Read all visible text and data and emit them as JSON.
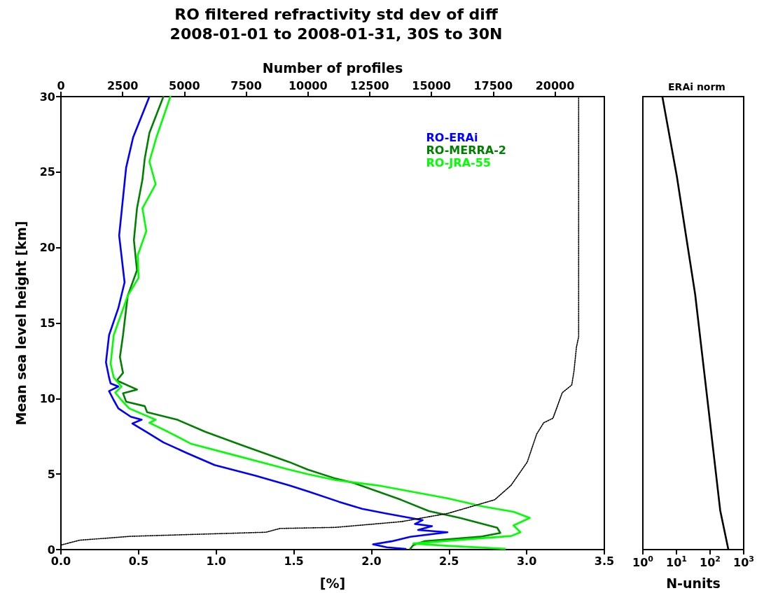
{
  "chart_data": [
    {
      "type": "line",
      "title": "RO filtered refractivity std dev of diff",
      "subtitle": "2008-01-01 to 2008-01-31, 30S to 30N",
      "xlabel": "[%]",
      "ylabel": "Mean sea level height [km]",
      "x2label": "Number of profiles",
      "xlim": [
        0,
        3.5
      ],
      "xticks": [
        {
          "value": 0,
          "label": "0.0"
        },
        0.5,
        {
          "value": 1,
          "label": "1.0"
        },
        1.5,
        {
          "value": 2,
          "label": "2.0"
        },
        2.5,
        {
          "value": 3,
          "label": "3.0"
        },
        3.5
      ],
      "ylim": [
        0,
        30
      ],
      "yticks": [
        0,
        5,
        10,
        15,
        20,
        25,
        30
      ],
      "x2lim": [
        0,
        22000
      ],
      "x2ticks": [
        0,
        2500,
        5000,
        7500,
        10000,
        12500,
        15000,
        17500,
        20000
      ],
      "legend": "top right",
      "series": [
        {
          "name": "RO-ERAi",
          "color": "#0000ff",
          "x": [
            2.22,
            2.1,
            2.01,
            2.13,
            2.25,
            2.49,
            2.3,
            2.39,
            2.28,
            2.33,
            2.25,
            2.09,
            1.94,
            1.79,
            1.59,
            1.47,
            1.25,
            0.99,
            0.81,
            0.66,
            0.55,
            0.46,
            0.52,
            0.45,
            0.37,
            0.34,
            0.31,
            0.37,
            0.32,
            0.31,
            0.29,
            0.31,
            0.37,
            0.41,
            0.375,
            0.39,
            0.42,
            0.465,
            0.57
          ],
          "values": [
            0.05,
            0.15,
            0.35,
            0.55,
            0.85,
            1.15,
            1.3,
            1.55,
            1.7,
            1.95,
            2.1,
            2.4,
            2.7,
            3.17,
            3.86,
            4.25,
            4.9,
            5.6,
            6.4,
            7.1,
            7.8,
            8.35,
            8.6,
            8.8,
            9.35,
            9.9,
            10.5,
            10.8,
            11.0,
            11.4,
            12.4,
            14.2,
            16.0,
            17.7,
            20.8,
            22.3,
            25.3,
            27.3,
            30
          ]
        },
        {
          "name": "RO-MERRA-2",
          "color": "#008000",
          "x": [
            2.25,
            2.27,
            2.34,
            2.7,
            2.83,
            2.81,
            2.57,
            2.37,
            2.19,
            1.89,
            1.77,
            1.59,
            1.47,
            1.17,
            0.93,
            0.75,
            0.555,
            0.54,
            0.42,
            0.4,
            0.49,
            0.36,
            0.4,
            0.38,
            0.4,
            0.43,
            0.49,
            0.47,
            0.49,
            0.525,
            0.54,
            0.57,
            0.66
          ],
          "values": [
            0.05,
            0.3,
            0.55,
            0.85,
            1.1,
            1.45,
            2.1,
            2.55,
            3.3,
            4.4,
            4.7,
            5.3,
            5.8,
            6.9,
            7.8,
            8.6,
            9.1,
            9.5,
            9.8,
            10.35,
            10.6,
            11.2,
            11.7,
            12.75,
            14.2,
            16.8,
            18.5,
            20.5,
            22.6,
            24.5,
            25.9,
            27.6,
            30
          ]
        },
        {
          "name": "RO-JRA-55",
          "color": "#00ff00",
          "x": [
            2.86,
            2.49,
            2.27,
            2.64,
            2.9,
            2.96,
            2.915,
            3.02,
            2.915,
            2.72,
            2.49,
            2.04,
            1.77,
            1.59,
            1.47,
            1.1,
            0.84,
            0.69,
            0.57,
            0.61,
            0.44,
            0.39,
            0.35,
            0.39,
            0.34,
            0.32,
            0.34,
            0.43,
            0.5,
            0.495,
            0.55,
            0.525,
            0.61,
            0.57,
            0.615,
            0.705
          ],
          "values": [
            0.05,
            0.25,
            0.4,
            0.7,
            0.9,
            1.15,
            1.6,
            2.1,
            2.5,
            2.85,
            3.4,
            4.25,
            4.6,
            5.0,
            5.3,
            6.3,
            7.0,
            7.8,
            8.4,
            8.6,
            9.35,
            9.9,
            10.4,
            10.8,
            11.4,
            12.3,
            14.2,
            16.8,
            18.0,
            19.5,
            21.1,
            22.6,
            24.2,
            25.7,
            27.3,
            30
          ]
        },
        {
          "color": "#000000",
          "axis": "x2",
          "line_style": "dotted",
          "x": [
            0,
            750,
            2825,
            8300,
            8870,
            11100,
            13780,
            15670,
            17560,
            18220,
            18880,
            19260,
            19545,
            19920,
            20300,
            20680,
            20770,
            20870,
            20960,
            20960
          ],
          "values": [
            0.3,
            0.62,
            0.88,
            1.15,
            1.4,
            1.47,
            1.85,
            2.4,
            3.3,
            4.25,
            5.8,
            7.65,
            8.4,
            8.7,
            10.4,
            10.9,
            11.8,
            13.4,
            14.1,
            30
          ]
        }
      ]
    },
    {
      "type": "line",
      "title": "ERAi norm",
      "xlabel": "N-units",
      "log": "x",
      "xlim": [
        1,
        1000
      ],
      "xticks": [
        {
          "value": 1,
          "label": "10$^{0}$"
        },
        {
          "value": 10,
          "label": "10$^{1}$"
        },
        {
          "value": 100,
          "label": "10$^{2}$"
        },
        {
          "value": 1000,
          "label": "10$^{3}$"
        }
      ],
      "ylim": [
        0,
        30
      ],
      "tick_labels": "x",
      "series": [
        {
          "color": "#000000",
          "x": [
            350,
            200,
            91,
            36,
            18,
            10.3,
            3.8
          ],
          "values": [
            0,
            2.6,
            9.2,
            16.9,
            21.2,
            24.7,
            30
          ]
        }
      ]
    }
  ]
}
